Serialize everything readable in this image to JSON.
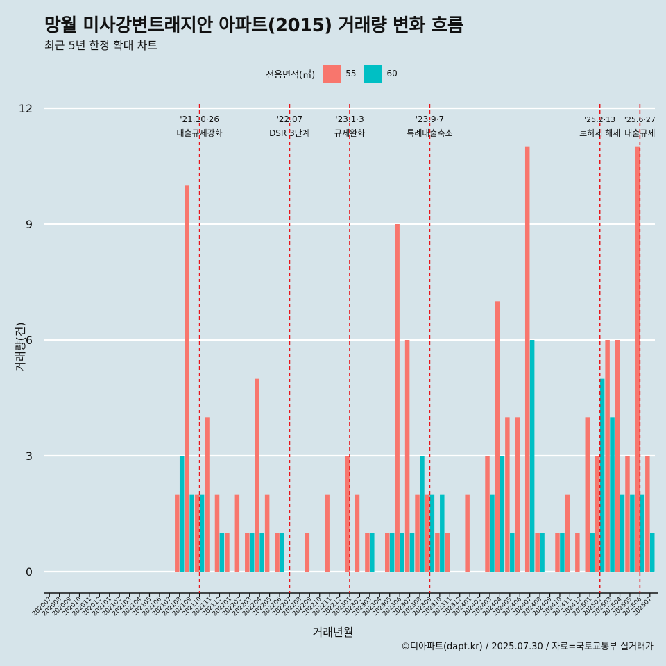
{
  "header": {
    "title": "망월 미사강변트래지안 아파트(2015) 거래량 변화 흐름",
    "subtitle": "최근 5년 한정 확대 차트"
  },
  "legend": {
    "title": "전용면적(㎡)",
    "items": [
      {
        "label": "55",
        "color": "#f8766d"
      },
      {
        "label": "60",
        "color": "#00bfc4"
      }
    ]
  },
  "caption": "©디아파트(dapt.kr) / 2025.07.30 / 자료=국토교통부 실거래가",
  "chart_data": {
    "type": "bar",
    "title": "망월 미사강변트래지안 아파트(2015) 거래량 변화 흐름",
    "xlabel": "거래년월",
    "ylabel": "거래량(건)",
    "ylim": [
      0,
      12
    ],
    "yticks": [
      0,
      3,
      6,
      9,
      12
    ],
    "grid": true,
    "categories": [
      "202007",
      "202008",
      "202009",
      "202010",
      "202011",
      "202012",
      "202101",
      "202102",
      "202103",
      "202104",
      "202105",
      "202106",
      "202107",
      "202108",
      "202109",
      "202110",
      "202111",
      "202112",
      "202201",
      "202202",
      "202203",
      "202204",
      "202205",
      "202206",
      "202207",
      "202208",
      "202209",
      "202210",
      "202211",
      "202212",
      "202301",
      "202302",
      "202303",
      "202304",
      "202305",
      "202306",
      "202307",
      "202308",
      "202309",
      "202310",
      "202311",
      "202312",
      "202401",
      "202402",
      "202403",
      "202404",
      "202405",
      "202406",
      "202407",
      "202408",
      "202409",
      "202410",
      "202411",
      "202412",
      "202501",
      "202502",
      "202503",
      "202504",
      "202505",
      "202506",
      "202507"
    ],
    "series": [
      {
        "name": "55",
        "values": [
          0,
          0,
          0,
          0,
          0,
          0,
          0,
          0,
          0,
          0,
          0,
          0,
          0,
          2,
          10,
          2,
          4,
          2,
          1,
          2,
          1,
          5,
          2,
          1,
          0,
          0,
          1,
          0,
          2,
          0,
          3,
          2,
          1,
          0,
          1,
          9,
          6,
          2,
          2,
          1,
          1,
          0,
          2,
          0,
          3,
          7,
          4,
          4,
          11,
          1,
          0,
          1,
          2,
          1,
          4,
          3,
          6,
          6,
          3,
          11,
          3
        ]
      },
      {
        "name": "60",
        "values": [
          0,
          0,
          0,
          0,
          0,
          0,
          0,
          0,
          0,
          0,
          0,
          0,
          0,
          3,
          2,
          2,
          0,
          1,
          0,
          0,
          1,
          1,
          0,
          1,
          0,
          0,
          0,
          0,
          0,
          0,
          0,
          0,
          1,
          0,
          1,
          1,
          1,
          3,
          2,
          2,
          0,
          0,
          0,
          0,
          2,
          3,
          1,
          0,
          6,
          1,
          0,
          1,
          0,
          0,
          1,
          5,
          4,
          2,
          2,
          2,
          1
        ]
      }
    ],
    "annotations": [
      {
        "date": "'21.10·26",
        "label": "대출규제강화",
        "at": "202110"
      },
      {
        "date": "'22.07",
        "label": "DSR 3단계",
        "at": "202207"
      },
      {
        "date": "'23.1·3",
        "label": "규제완화",
        "at": "202301"
      },
      {
        "date": "'23.9·7",
        "label": "특례대출축소",
        "at": "202309"
      },
      {
        "date": "'25.2·13",
        "label": "토허제 해제",
        "at": "202502"
      },
      {
        "date": "'25.6·27",
        "label": "대출규제",
        "at": "202506"
      }
    ]
  }
}
